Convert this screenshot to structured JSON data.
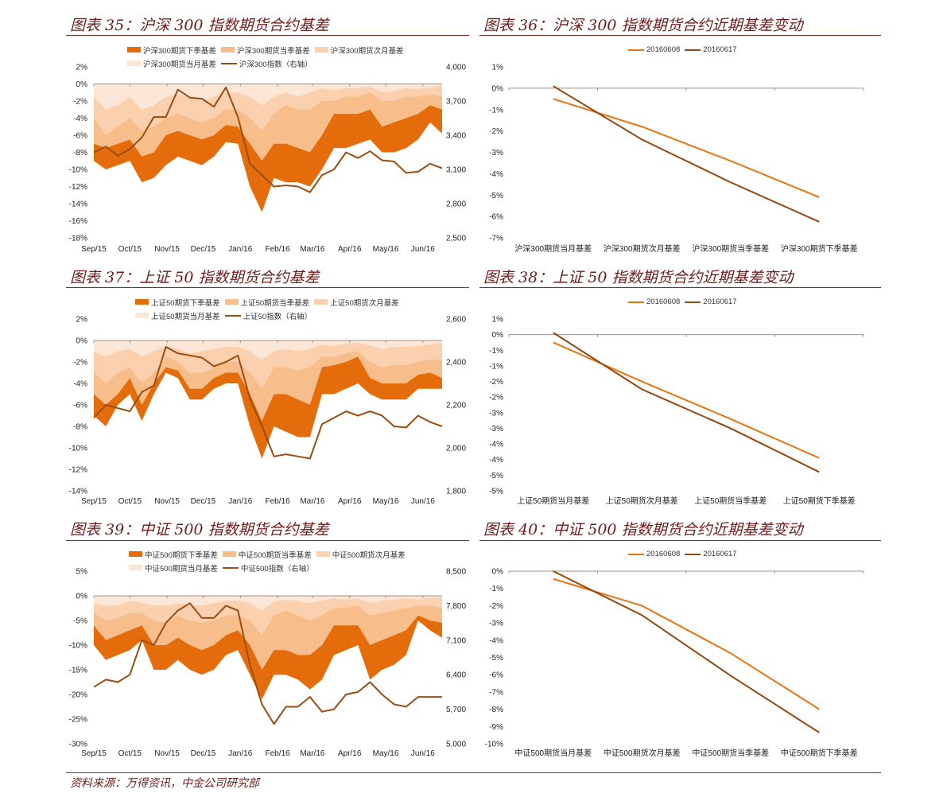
{
  "colors": {
    "title": "#6e1c1c",
    "far_quarter": "#e46c0a",
    "near_quarter": "#f7bd8b",
    "next_month": "#fad0ae",
    "current_month": "#fce6d6",
    "index": "#9a4d12",
    "s0608": "#e8740f",
    "s0617": "#94470e",
    "axis": "#a0908a"
  },
  "source": "资料来源：万得资讯，中金公司研究部",
  "chart_data": [
    {
      "type": "area",
      "figure_no": "图表 35：",
      "title": "沪深 300 指数期货合约基差",
      "legend": [
        "沪深300期货下季基差",
        "沪深300期货当季基差",
        "沪深300期货次月基差",
        "沪深300期货当月基差",
        "沪深300指数（右轴）"
      ],
      "x_unit": "days since 2015-09-01",
      "xlim": [
        0,
        290
      ],
      "xticks": [
        0,
        30,
        61,
        91,
        122,
        153,
        182,
        213,
        243,
        274
      ],
      "xtick_labels": [
        "Sep/15",
        "Oct/15",
        "Nov/15",
        "Dec/15",
        "Jan/16",
        "Feb/16",
        "Mar/16",
        "Apr/16",
        "May/16",
        "Jun/16"
      ],
      "ylim": [
        -18,
        2
      ],
      "yticks": [
        2,
        0,
        -2,
        -4,
        -6,
        -8,
        -10,
        -12,
        -14,
        -16,
        -18
      ],
      "ytick_labels": [
        "2%",
        "0%",
        "-2%",
        "-4%",
        "-6%",
        "-8%",
        "-10%",
        "-12%",
        "-14%",
        "-16%",
        "-18%"
      ],
      "y2lim": [
        2500,
        4000
      ],
      "y2ticks": [
        4000,
        3700,
        3400,
        3100,
        2800,
        2500
      ],
      "y2tick_labels": [
        "4,000",
        "3,700",
        "3,400",
        "3,100",
        "2,800",
        "2,500"
      ],
      "x": [
        0,
        10,
        20,
        30,
        40,
        50,
        60,
        70,
        80,
        90,
        100,
        110,
        120,
        130,
        140,
        150,
        160,
        170,
        180,
        190,
        200,
        210,
        220,
        230,
        240,
        250,
        260,
        270,
        280,
        290
      ],
      "series": [
        {
          "name": "沪深300期货下季基差",
          "values": [
            -9,
            -10,
            -9.5,
            -9,
            -11.5,
            -11,
            -9.5,
            -8.5,
            -9,
            -9.5,
            -8.5,
            -6.8,
            -7,
            -12,
            -15,
            -11,
            -11.5,
            -11.5,
            -12,
            -10,
            -7.5,
            -7.5,
            -7,
            -6.5,
            -8,
            -8,
            -7.5,
            -6.5,
            -4.5,
            -5.8
          ]
        },
        {
          "name": "沪深300期货当季基差",
          "values": [
            -7,
            -7.5,
            -7,
            -6.5,
            -8.5,
            -8,
            -6,
            -5.5,
            -6,
            -6.5,
            -6,
            -4.8,
            -5,
            -7,
            -9,
            -7,
            -7,
            -7.5,
            -8,
            -6,
            -3.5,
            -3.5,
            -3.5,
            -3,
            -5,
            -4.5,
            -4,
            -3.5,
            -2.5,
            -3
          ]
        },
        {
          "name": "沪深300期货次月基差",
          "values": [
            -4,
            -6,
            -5,
            -4,
            -5.5,
            -5,
            -4,
            -3.5,
            -4,
            -4.5,
            -4,
            -3,
            -3,
            -4,
            -5.5,
            -3.5,
            -2.5,
            -3,
            -3,
            -2,
            -2,
            -1.5,
            -1.5,
            -1,
            -2,
            -2,
            -1.5,
            -1.5,
            -1.2,
            -1.5
          ]
        },
        {
          "name": "沪深300期货当月基差",
          "values": [
            -1.5,
            -3,
            -2.5,
            -1.5,
            -3,
            -2.5,
            -1.5,
            -1.2,
            -1.5,
            -2,
            -1.5,
            -1,
            -1,
            -1.5,
            -2.5,
            -1.5,
            -1,
            -1.5,
            -1,
            -0.5,
            -0.8,
            -0.5,
            -0.5,
            -0.3,
            -1,
            -0.8,
            -0.5,
            -0.6,
            -0.4,
            -0.2
          ]
        }
      ],
      "index": {
        "name": "沪深300指数（右轴）",
        "values": [
          3250,
          3300,
          3220,
          3280,
          3380,
          3560,
          3560,
          3800,
          3730,
          3720,
          3650,
          3820,
          3560,
          3150,
          3050,
          2950,
          2960,
          2950,
          2900,
          3050,
          3100,
          3250,
          3200,
          3260,
          3180,
          3170,
          3070,
          3080,
          3150,
          3110
        ]
      }
    },
    {
      "type": "line",
      "figure_no": "图表 36：",
      "title": "沪深 300 指数期货合约近期基差变动",
      "categories": [
        "沪深300期货当月基差",
        "沪深300期货次月基差",
        "沪深300期货当季基差",
        "沪深300期货下季基差"
      ],
      "ylim": [
        -7,
        1
      ],
      "yticks": [
        1,
        0,
        -1,
        -2,
        -3,
        -4,
        -5,
        -6,
        -7
      ],
      "ytick_labels": [
        "1%",
        "0%",
        "-1%",
        "-2%",
        "-3%",
        "-4%",
        "-5%",
        "-6%",
        "-7%"
      ],
      "series": [
        {
          "name": "20160608",
          "values": [
            -0.5,
            -1.8,
            -3.4,
            -5.1
          ]
        },
        {
          "name": "20160617",
          "values": [
            0.1,
            -2.4,
            -4.4,
            -6.25
          ]
        }
      ]
    },
    {
      "type": "area",
      "figure_no": "图表 37：",
      "title": "上证 50 指数期货合约基差",
      "legend": [
        "上证50期货下季基差",
        "上证50期货当季基差",
        "上证50期货次月基差",
        "上证50期货当月基差",
        "上证50指数（右轴）"
      ],
      "x_unit": "days since 2015-09-01",
      "xlim": [
        0,
        290
      ],
      "xticks": [
        0,
        30,
        61,
        91,
        122,
        153,
        182,
        213,
        243,
        274
      ],
      "xtick_labels": [
        "Sep/15",
        "Oct/15",
        "Nov/15",
        "Dec/15",
        "Jan/16",
        "Feb/16",
        "Mar/16",
        "Apr/16",
        "May/16",
        "Jun/16"
      ],
      "ylim": [
        -14,
        2
      ],
      "yticks": [
        2,
        0,
        -2,
        -4,
        -6,
        -8,
        -10,
        -12,
        -14
      ],
      "ytick_labels": [
        "2%",
        "0%",
        "-2%",
        "-4%",
        "-6%",
        "-8%",
        "-10%",
        "-12%",
        "-14%"
      ],
      "y2lim": [
        1800,
        2600
      ],
      "y2ticks": [
        2600,
        2400,
        2200,
        2000,
        1800
      ],
      "y2tick_labels": [
        "2,600",
        "2,400",
        "2,200",
        "2,000",
        "1,800"
      ],
      "x": [
        0,
        10,
        20,
        30,
        40,
        50,
        60,
        70,
        80,
        90,
        100,
        110,
        120,
        130,
        140,
        150,
        160,
        170,
        180,
        190,
        200,
        210,
        220,
        230,
        240,
        250,
        260,
        270,
        280,
        290
      ],
      "series": [
        {
          "name": "上证50期货下季基差",
          "values": [
            -7,
            -8,
            -6,
            -5,
            -7.5,
            -5,
            -3,
            -3.5,
            -5.5,
            -5.5,
            -4.5,
            -4,
            -4,
            -8,
            -11,
            -8,
            -8.5,
            -9,
            -9,
            -5,
            -5,
            -4.5,
            -4,
            -5,
            -5.5,
            -5.5,
            -5.5,
            -4.5,
            -4.5,
            -4.5
          ]
        },
        {
          "name": "上证50期货当季基差",
          "values": [
            -5,
            -6,
            -5,
            -3.5,
            -6,
            -4,
            -2.5,
            -2.8,
            -4.5,
            -4.5,
            -3.5,
            -3,
            -3,
            -5,
            -7.5,
            -5,
            -5,
            -5.5,
            -6,
            -2.5,
            -2.3,
            -2,
            -1.5,
            -3.5,
            -4,
            -4,
            -4,
            -3.2,
            -3,
            -3.5
          ]
        },
        {
          "name": "上证50期货次月基差",
          "values": [
            -3,
            -4,
            -3,
            -2.5,
            -4,
            -3,
            -1.5,
            -2,
            -3,
            -3,
            -2.5,
            -2,
            -2,
            -3,
            -4.5,
            -2.5,
            -2.5,
            -2.8,
            -2.5,
            -1.5,
            -1.5,
            -1.2,
            -1,
            -2,
            -2.5,
            -2.3,
            -2.3,
            -2,
            -1.8,
            -1.8
          ]
        },
        {
          "name": "上证50期货当月基差",
          "values": [
            -1,
            -1.5,
            -1,
            -0.8,
            -1.5,
            -1,
            -0.5,
            -0.8,
            -1.2,
            -1,
            -0.8,
            -0.6,
            -0.6,
            -1,
            -1.8,
            -1,
            -0.8,
            -1,
            -0.8,
            -0.4,
            -0.5,
            -0.3,
            -0.2,
            -0.5,
            -0.8,
            -0.6,
            -0.6,
            -0.5,
            -0.4,
            -0.2
          ]
        }
      ],
      "index": {
        "name": "上证50指数（右轴）",
        "values": [
          2140,
          2200,
          2185,
          2170,
          2260,
          2290,
          2470,
          2440,
          2430,
          2420,
          2380,
          2400,
          2430,
          2230,
          2100,
          1960,
          1970,
          1960,
          1950,
          2110,
          2140,
          2170,
          2150,
          2170,
          2150,
          2100,
          2095,
          2150,
          2120,
          2100
        ]
      }
    },
    {
      "type": "line",
      "figure_no": "图表 38：",
      "title": "上证 50 指数期货合约近期基差变动",
      "categories": [
        "上证50期货当月基差",
        "上证50期货次月基差",
        "上证50期货当季基差",
        "上证50期货下季基差"
      ],
      "ylim": [
        -5,
        0.5
      ],
      "yticks": [
        0.5,
        0,
        -0.5,
        -1,
        -1.5,
        -2,
        -2.5,
        -3,
        -3.5,
        -4,
        -4.5,
        -5
      ],
      "ytick_labels": [
        "1%",
        "0%",
        "-1%",
        "-1%",
        "-2%",
        "-2%",
        "-3%",
        "-3%",
        "-4%",
        "-4%",
        "-5%",
        "-5%"
      ],
      "series": [
        {
          "name": "20160608",
          "values": [
            -0.25,
            -1.5,
            -2.7,
            -3.95
          ]
        },
        {
          "name": "20160617",
          "values": [
            0.06,
            -1.75,
            -3.0,
            -4.4
          ]
        }
      ]
    },
    {
      "type": "area",
      "figure_no": "图表 39：",
      "title": "中证 500 指数期货合约基差",
      "legend": [
        "中证500期货下季基差",
        "中证500期货当季基差",
        "中证500期货次月基差",
        "中证500期货当月基差",
        "中证500指数（右轴）"
      ],
      "x_unit": "days since 2015-09-01",
      "xlim": [
        0,
        290
      ],
      "xticks": [
        0,
        30,
        61,
        91,
        122,
        153,
        182,
        213,
        243,
        274
      ],
      "xtick_labels": [
        "Sep/15",
        "Oct/15",
        "Nov/15",
        "Dec/15",
        "Jan/16",
        "Feb/16",
        "Mar/16",
        "Apr/16",
        "May/16",
        "Jun/16"
      ],
      "ylim": [
        -30,
        5
      ],
      "yticks": [
        5,
        0,
        -5,
        -10,
        -15,
        -20,
        -25,
        -30
      ],
      "ytick_labels": [
        "5%",
        "0%",
        "-5%",
        "-10%",
        "-15%",
        "-20%",
        "-25%",
        "-30%"
      ],
      "y2lim": [
        5000,
        8500
      ],
      "y2ticks": [
        8500,
        7800,
        7100,
        6400,
        5700,
        5000
      ],
      "y2tick_labels": [
        "8,500",
        "7,800",
        "7,100",
        "6,400",
        "5,700",
        "5,000"
      ],
      "x": [
        0,
        10,
        20,
        30,
        40,
        50,
        60,
        70,
        80,
        90,
        100,
        110,
        120,
        130,
        140,
        150,
        160,
        170,
        180,
        190,
        200,
        210,
        220,
        230,
        240,
        250,
        260,
        270,
        280,
        290
      ],
      "series": [
        {
          "name": "中证500期货下季基差",
          "values": [
            -10,
            -13,
            -12,
            -11,
            -9,
            -15,
            -15,
            -13,
            -15,
            -16,
            -15,
            -12,
            -11,
            -16,
            -21,
            -16,
            -16,
            -17,
            -19,
            -17,
            -12,
            -11,
            -10,
            -17,
            -15,
            -14,
            -12,
            -5,
            -7,
            -8.5
          ]
        },
        {
          "name": "中证500期货当季基差",
          "values": [
            -6,
            -9,
            -8,
            -7,
            -6,
            -10,
            -10,
            -8.5,
            -10,
            -11,
            -10,
            -8,
            -7,
            -10,
            -15,
            -11,
            -11,
            -12,
            -12,
            -10,
            -6,
            -6,
            -6,
            -10,
            -9,
            -8,
            -7,
            -4,
            -5,
            -5.5
          ]
        },
        {
          "name": "中证500期货次月基差",
          "values": [
            -3.5,
            -5,
            -4.5,
            -3.5,
            -3.5,
            -5,
            -5.5,
            -4,
            -5,
            -5.5,
            -5,
            -4,
            -4,
            -5,
            -8,
            -4,
            -3,
            -4,
            -5,
            -4,
            -2.5,
            -2.5,
            -2,
            -4,
            -3.5,
            -3,
            -2.5,
            -2,
            -2,
            -2.5
          ]
        },
        {
          "name": "中证500期货当月基差",
          "values": [
            -1.5,
            -2,
            -2,
            -1,
            -1.5,
            -2,
            -2,
            -1.5,
            -2,
            -2,
            -1.5,
            -1,
            -1,
            -1.5,
            -3,
            -1.2,
            -0.8,
            -1,
            -1.5,
            -1,
            -0.5,
            -0.8,
            -0.5,
            -1.5,
            -1,
            -0.8,
            -0.5,
            -0.8,
            -0.5,
            -0.3
          ]
        }
      ],
      "index": {
        "name": "中证500指数（右轴）",
        "values": [
          6150,
          6300,
          6250,
          6400,
          7100,
          7000,
          7450,
          7700,
          7850,
          7550,
          7550,
          7800,
          7700,
          6600,
          5800,
          5400,
          5750,
          5750,
          5950,
          5650,
          5700,
          6000,
          6050,
          6250,
          6000,
          5800,
          5750,
          5950,
          5950,
          5950
        ]
      }
    },
    {
      "type": "line",
      "figure_no": "图表 40：",
      "title": "中证 500 指数期货合约近期基差变动",
      "categories": [
        "中证500期货当月基差",
        "中证500期货次月基差",
        "中证500期货当季基差",
        "中证500期货下季基差"
      ],
      "ylim": [
        -10,
        0
      ],
      "yticks": [
        0,
        -1,
        -2,
        -3,
        -4,
        -5,
        -6,
        -7,
        -8,
        -9,
        -10
      ],
      "ytick_labels": [
        "0%",
        "-1%",
        "-2%",
        "-3%",
        "-4%",
        "-5%",
        "-6%",
        "-7%",
        "-8%",
        "-9%",
        "-10%"
      ],
      "series": [
        {
          "name": "20160608",
          "values": [
            -0.45,
            -2.0,
            -4.75,
            -8.0
          ]
        },
        {
          "name": "20160617",
          "values": [
            0,
            -2.55,
            -6.05,
            -9.35
          ]
        }
      ]
    }
  ]
}
